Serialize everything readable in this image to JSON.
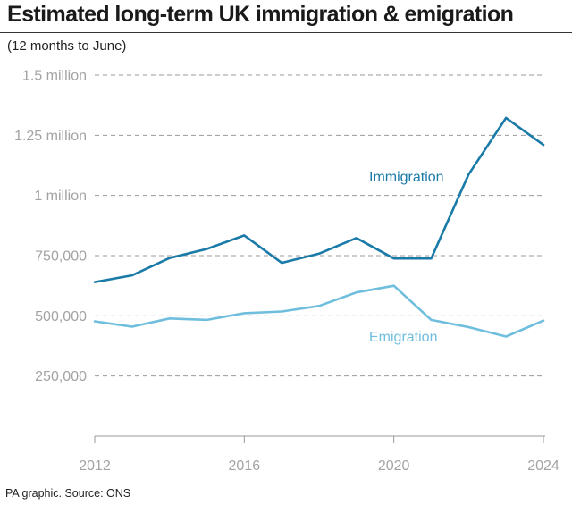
{
  "title": "Estimated long-term UK immigration & emigration",
  "subtitle": "(12 months to June)",
  "footer": "PA graphic. Source: ONS",
  "chart_data": {
    "type": "line",
    "x": [
      2012,
      2013,
      2014,
      2015,
      2016,
      2017,
      2018,
      2019,
      2020,
      2021,
      2022,
      2023,
      2024
    ],
    "series": [
      {
        "name": "Immigration",
        "color": "#1a7aa8",
        "values": [
          640000,
          668000,
          740000,
          778000,
          834000,
          720000,
          758000,
          823000,
          738000,
          738000,
          1087000,
          1322000,
          1210000
        ]
      },
      {
        "name": "Emigration",
        "color": "#6fbede",
        "values": [
          477000,
          455000,
          489000,
          483000,
          511000,
          518000,
          541000,
          597000,
          625000,
          483000,
          453000,
          414000,
          480000
        ]
      }
    ],
    "ylim": [
      0,
      1500000
    ],
    "yticks": [
      250000,
      500000,
      750000,
      1000000,
      1250000,
      1500000
    ],
    "ytick_labels": [
      "250,000",
      "500,000",
      "750,000",
      "1 million",
      "1.25 million",
      "1.5 million"
    ],
    "xticks": [
      2012,
      2016,
      2020,
      2024
    ],
    "xtick_labels": [
      "2012",
      "2016",
      "2020",
      "2024"
    ],
    "grid": true,
    "xlabel": "",
    "ylabel": ""
  }
}
